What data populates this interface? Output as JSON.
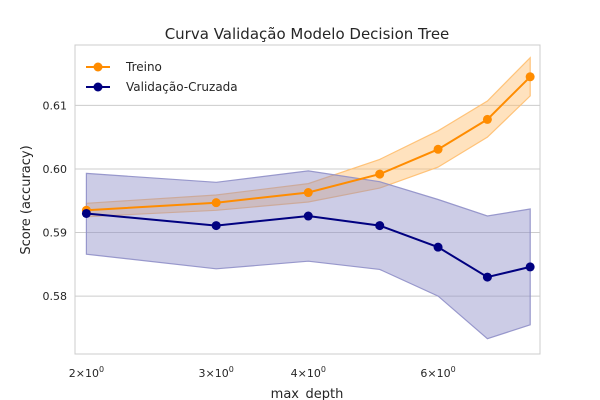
{
  "chart_data": {
    "type": "line",
    "title": "Curva Validação Modelo Decision Tree",
    "xlabel": "max_depth",
    "ylabel": "Score (accuracy)",
    "xscale": "log",
    "xlim": [
      1.93,
      8.25
    ],
    "ylim": [
      0.5709,
      0.6195
    ],
    "x": [
      2,
      3,
      4,
      5,
      6,
      7,
      8
    ],
    "x_ticks": [
      {
        "value": 2,
        "base": "2",
        "times": "×",
        "ten": "10",
        "exp": "0"
      },
      {
        "value": 3,
        "base": "3",
        "times": "×",
        "ten": "10",
        "exp": "0"
      },
      {
        "value": 4,
        "base": "4",
        "times": "×",
        "ten": "10",
        "exp": "0"
      },
      {
        "value": 6,
        "base": "6",
        "times": "×",
        "ten": "10",
        "exp": "0"
      }
    ],
    "y_ticks": [
      {
        "value": 0.58,
        "label": "0.58"
      },
      {
        "value": 0.59,
        "label": "0.59"
      },
      {
        "value": 0.6,
        "label": "0.60"
      },
      {
        "value": 0.61,
        "label": "0.61"
      }
    ],
    "grid": "horizontal",
    "legend_position": "top-left",
    "series": [
      {
        "name": "Treino",
        "color": "#ff8c00",
        "band_color": "#ffbe6e",
        "values": [
          0.5935,
          0.5947,
          0.5963,
          0.5992,
          0.6031,
          0.6078,
          0.6145
        ],
        "lower": [
          0.5925,
          0.5935,
          0.5948,
          0.597,
          0.6003,
          0.605,
          0.6115
        ],
        "upper": [
          0.5946,
          0.5959,
          0.5977,
          0.6015,
          0.606,
          0.6107,
          0.6175
        ]
      },
      {
        "name": "Validação-Cruzada",
        "color": "#000080",
        "band_color": "#8f8fc8",
        "values": [
          0.593,
          0.5911,
          0.5926,
          0.5911,
          0.5877,
          0.583,
          0.5846
        ],
        "lower": [
          0.5866,
          0.5843,
          0.5855,
          0.5842,
          0.58,
          0.5733,
          0.5755
        ],
        "upper": [
          0.5993,
          0.5979,
          0.5997,
          0.598,
          0.5952,
          0.5926,
          0.5937
        ]
      }
    ]
  }
}
